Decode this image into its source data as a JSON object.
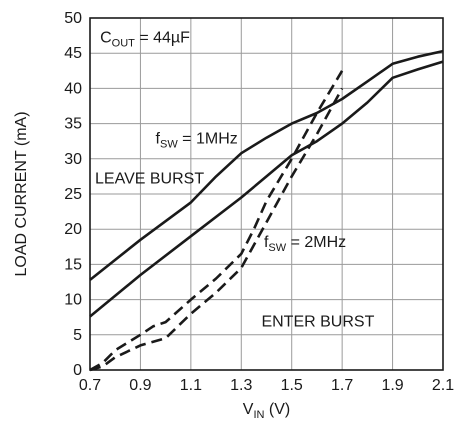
{
  "chart_data": {
    "type": "line",
    "xlabel": "V",
    "xlabel_sub": "IN",
    "xlabel_unit": " (V)",
    "ylabel": "LOAD CURRENT (mA)",
    "xlim": [
      0.7,
      2.1
    ],
    "ylim": [
      0,
      50
    ],
    "grid": true,
    "x_ticks": [
      "0.7",
      "0.9",
      "1.1",
      "1.3",
      "1.5",
      "1.7",
      "1.9",
      "2.1"
    ],
    "y_ticks": [
      "0",
      "5",
      "10",
      "15",
      "20",
      "25",
      "30",
      "35",
      "40",
      "45",
      "50"
    ],
    "series": [
      {
        "style": "solid",
        "points": [
          [
            0.7,
            12.8
          ],
          [
            0.9,
            18.5
          ],
          [
            1.1,
            23.8
          ],
          [
            1.2,
            27.5
          ],
          [
            1.3,
            30.8
          ],
          [
            1.4,
            33.0
          ],
          [
            1.5,
            35.0
          ],
          [
            1.6,
            36.5
          ],
          [
            1.7,
            38.5
          ],
          [
            1.8,
            41.0
          ],
          [
            1.9,
            43.5
          ],
          [
            2.0,
            44.5
          ],
          [
            2.1,
            45.3
          ]
        ]
      },
      {
        "style": "solid",
        "points": [
          [
            0.7,
            7.6
          ],
          [
            0.9,
            13.5
          ],
          [
            1.1,
            19.0
          ],
          [
            1.3,
            24.5
          ],
          [
            1.4,
            27.5
          ],
          [
            1.5,
            30.5
          ],
          [
            1.6,
            32.5
          ],
          [
            1.7,
            35.0
          ],
          [
            1.8,
            38.0
          ],
          [
            1.9,
            41.5
          ],
          [
            2.0,
            42.7
          ],
          [
            2.1,
            43.8
          ]
        ]
      },
      {
        "style": "dashed",
        "points": [
          [
            0.7,
            0.0
          ],
          [
            0.75,
            1.0
          ],
          [
            0.8,
            2.8
          ],
          [
            0.9,
            5.0
          ],
          [
            0.95,
            6.2
          ],
          [
            1.0,
            6.8
          ],
          [
            1.1,
            10.0
          ],
          [
            1.2,
            13.0
          ],
          [
            1.3,
            16.5
          ],
          [
            1.35,
            20.0
          ],
          [
            1.4,
            24.0
          ],
          [
            1.5,
            30.0
          ],
          [
            1.6,
            36.5
          ],
          [
            1.7,
            42.5
          ]
        ]
      },
      {
        "style": "dashed",
        "points": [
          [
            0.7,
            0.0
          ],
          [
            0.75,
            0.5
          ],
          [
            0.8,
            1.8
          ],
          [
            0.9,
            3.5
          ],
          [
            1.0,
            4.5
          ],
          [
            1.1,
            8.0
          ],
          [
            1.2,
            11.0
          ],
          [
            1.3,
            14.5
          ],
          [
            1.4,
            21.0
          ],
          [
            1.5,
            27.5
          ],
          [
            1.6,
            33.5
          ],
          [
            1.7,
            40.0
          ]
        ]
      }
    ],
    "annotations": [
      {
        "main": "C",
        "sub": "OUT",
        "rest": " = 44µF",
        "x": 0.74,
        "y": 46.5
      },
      {
        "main": "f",
        "sub": "SW",
        "rest": " = 1MHz",
        "x": 0.96,
        "y": 32.2
      },
      {
        "main": "LEAVE BURST",
        "sub": "",
        "rest": "",
        "x": 0.72,
        "y": 26.5
      },
      {
        "main": "f",
        "sub": "SW",
        "rest": " = 2MHz",
        "x": 1.39,
        "y": 17.5
      },
      {
        "main": "ENTER BURST",
        "sub": "",
        "rest": "",
        "x": 1.38,
        "y": 6.2
      }
    ]
  }
}
